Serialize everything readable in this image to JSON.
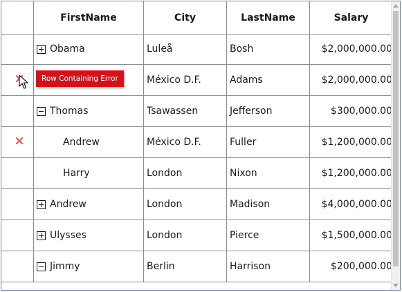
{
  "columns": [
    "FirstName",
    "City",
    "LastName",
    "Salary"
  ],
  "rows": [
    {
      "first": "Obama",
      "city": "Luleå",
      "last": "Bosh",
      "salary": "$2,000,000.00"
    },
    {
      "first": "",
      "city": "México D.F.",
      "last": "Adams",
      "salary": "$2,000,000.00"
    },
    {
      "first": "Thomas",
      "city": "Tsawassen",
      "last": "Jefferson",
      "salary": "$300,000.00"
    },
    {
      "first": "Andrew",
      "city": "México D.F.",
      "last": "Fuller",
      "salary": "$1,200,000.00"
    },
    {
      "first": "Harry",
      "city": "London",
      "last": "Nixon",
      "salary": "$1,200,000.00"
    },
    {
      "first": "Andrew",
      "city": "London",
      "last": "Madison",
      "salary": "$4,000,000.00"
    },
    {
      "first": "Ulysses",
      "city": "London",
      "last": "Pierce",
      "salary": "$1,500,000.00"
    },
    {
      "first": "Jimmy",
      "city": "Berlin",
      "last": "Harrison",
      "salary": "$200,000.00"
    }
  ],
  "error_tooltip": "Row Containing Error",
  "icons": {
    "expand": "plus-square-icon",
    "collapse": "minus-square-icon",
    "error": "error-x-icon",
    "cursor": "mouse-cursor-icon"
  },
  "colors": {
    "error_icon": "#e05a63",
    "tooltip_bg": "#d0131a",
    "grid_line": "#8c8c8c"
  }
}
